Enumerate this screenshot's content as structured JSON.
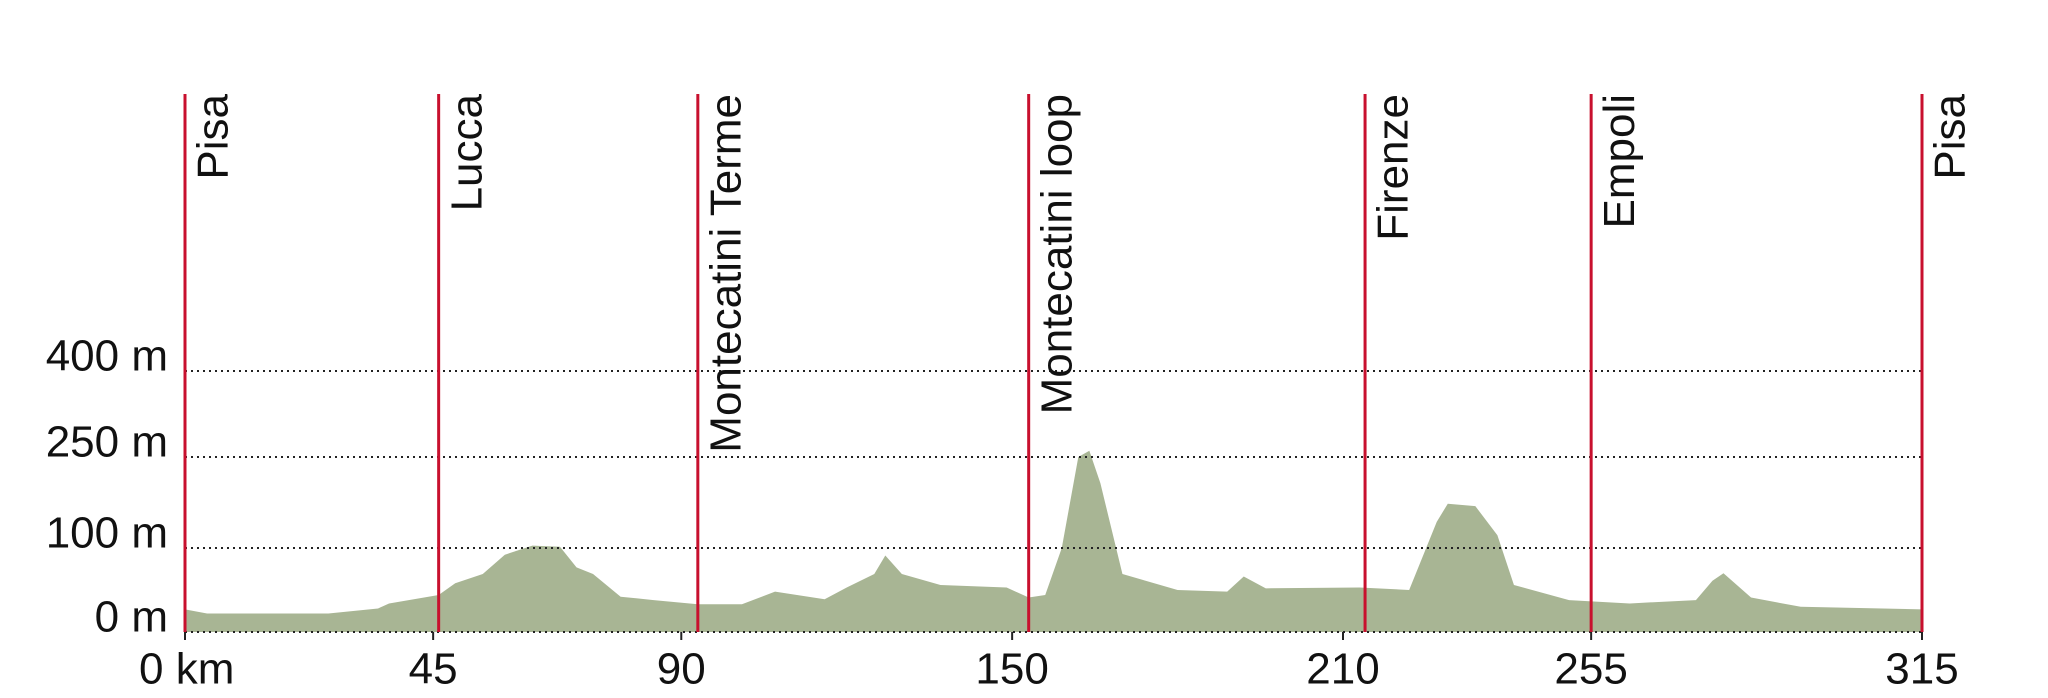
{
  "chart_data": {
    "type": "area",
    "x": [
      0,
      4,
      26,
      35,
      37,
      46,
      49,
      54,
      58,
      63,
      68,
      71,
      74,
      79,
      85,
      93,
      101,
      107,
      116,
      120,
      125,
      127,
      130,
      137,
      149,
      153,
      156,
      159,
      162,
      164,
      166,
      170,
      180,
      189,
      192,
      196,
      213,
      222,
      227,
      229,
      234,
      238,
      241,
      251,
      262,
      274,
      277,
      279,
      284,
      293,
      315
    ],
    "values": [
      27,
      22,
      22,
      28,
      34,
      44,
      58,
      69,
      92,
      104,
      102,
      77,
      69,
      42,
      38,
      33,
      33,
      48,
      39,
      53,
      69,
      91,
      69,
      56,
      53,
      41,
      44,
      100,
      250,
      261,
      207,
      69,
      50,
      48,
      66,
      52,
      53,
      50,
      143,
      173,
      169,
      121,
      56,
      38,
      34,
      38,
      61,
      70,
      41,
      30,
      27
    ],
    "color": "#a8b594",
    "xlim": [
      0,
      315
    ],
    "xticks": [
      {
        "value": 0,
        "label": "0 km"
      },
      45,
      90,
      150,
      210,
      255,
      315
    ],
    "ylim": [
      0,
      400
    ],
    "yticks": [
      {
        "value": 0,
        "label": "0 m"
      },
      {
        "value": 100,
        "label": "100 m"
      },
      {
        "value": 250,
        "label": "250 m"
      },
      {
        "value": 400,
        "label": "400 m"
      }
    ],
    "grid": true,
    "markers": [
      {
        "x": 0,
        "label": "Pisa"
      },
      {
        "x": 46,
        "label": "Lucca"
      },
      {
        "x": 93,
        "label": "Montecatini Terme"
      },
      {
        "x": 153,
        "label": "Montecatini loop"
      },
      {
        "x": 214,
        "label": "Firenze"
      },
      {
        "x": 255,
        "label": "Empoli"
      },
      {
        "x": 315,
        "label": "Pisa"
      }
    ],
    "marker_color": "#c8102e"
  }
}
